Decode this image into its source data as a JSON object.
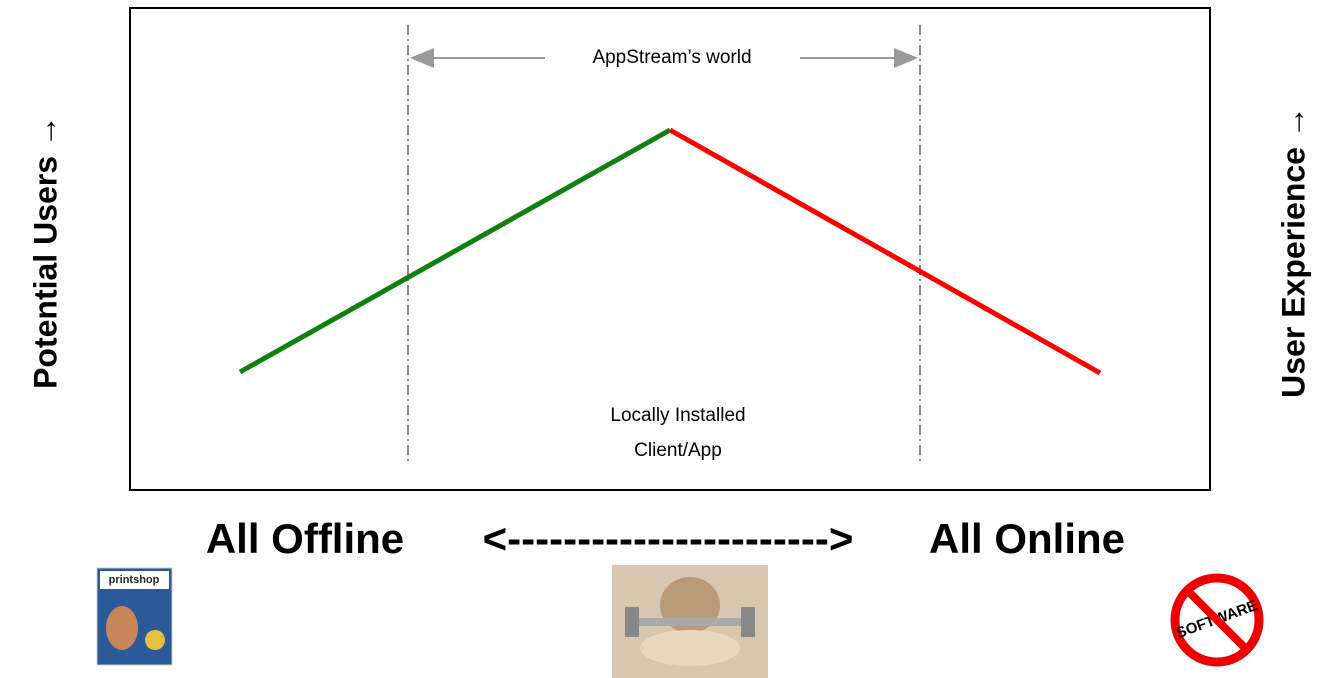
{
  "diagram": {
    "left_axis_label": "Potential Users →",
    "right_axis_label": "User Experience →",
    "range_label": "AppStream’s world",
    "center_label": [
      "Locally Installed",
      "Client/App"
    ],
    "bottom": {
      "left": "All Offline",
      "arrow": "<----------------------->",
      "right": "All Online"
    },
    "images": {
      "left_box_text": "printshop",
      "right_logo_text": "SOFTWARE"
    }
  }
}
